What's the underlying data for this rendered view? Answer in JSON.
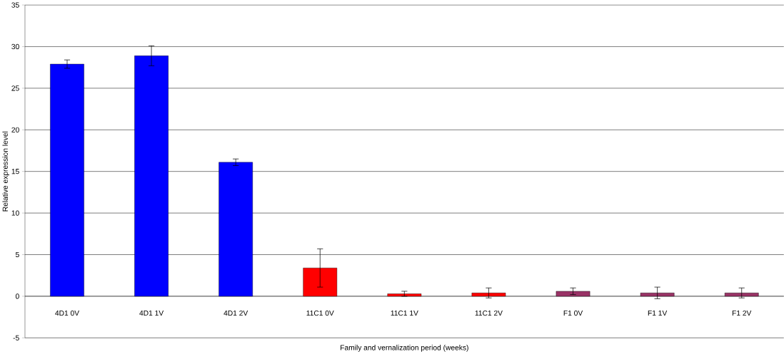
{
  "chart_data": {
    "type": "bar",
    "xlabel": "Family and vernalization period (weeks)",
    "ylabel": "Relative expression level",
    "categories": [
      "4D1 0V",
      "4D1 1V",
      "4D1 2V",
      "11C1 0V",
      "11C1 1V",
      "11C1 2V",
      "F1 0V",
      "F1 1V",
      "F1 2V"
    ],
    "values": [
      27.9,
      28.9,
      16.1,
      3.4,
      0.3,
      0.4,
      0.6,
      0.4,
      0.4
    ],
    "errors": [
      0.5,
      1.2,
      0.4,
      2.3,
      0.3,
      0.6,
      0.4,
      0.7,
      0.6
    ],
    "colors": [
      "#0000ff",
      "#0000ff",
      "#0000ff",
      "#ff0000",
      "#ff0000",
      "#ff0000",
      "#993366",
      "#993366",
      "#993366"
    ],
    "ylim": [
      -5,
      35
    ],
    "yticks": [
      -5,
      0,
      5,
      10,
      15,
      20,
      25,
      30,
      35
    ],
    "grid": "y"
  }
}
